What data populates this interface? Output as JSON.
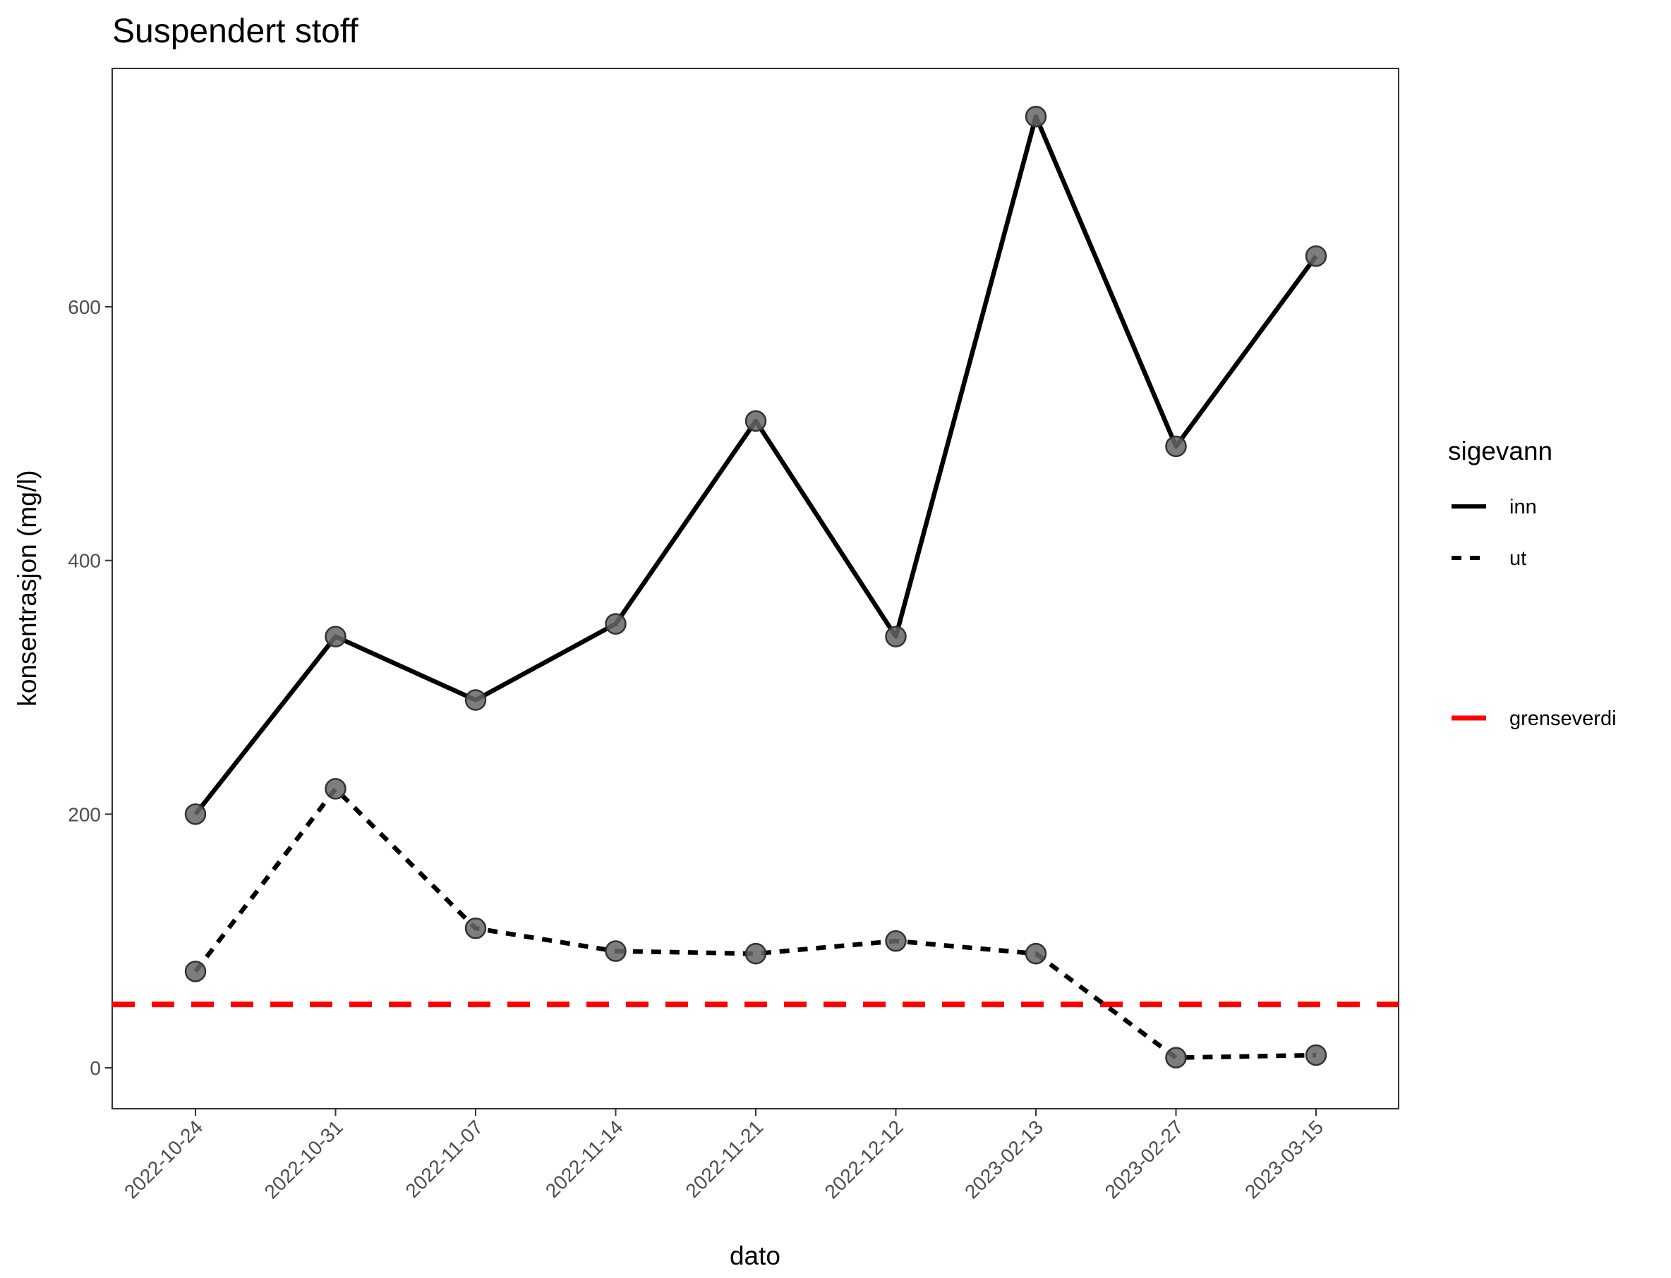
{
  "chart_data": {
    "type": "line",
    "title": "Suspendert stoff",
    "xlabel": "dato",
    "ylabel": "konsentrasjon (mg/l)",
    "categories": [
      "2022-10-24",
      "2022-10-31",
      "2022-11-07",
      "2022-11-14",
      "2022-11-21",
      "2022-12-12",
      "2023-02-13",
      "2023-02-27",
      "2023-03-15"
    ],
    "series": [
      {
        "name": "inn",
        "linetype": "solid",
        "color": "#000000",
        "values": [
          200,
          340,
          290,
          350,
          510,
          340,
          750,
          490,
          640
        ]
      },
      {
        "name": "ut",
        "linetype": "dashed",
        "color": "#000000",
        "values": [
          76,
          220,
          110,
          92,
          90,
          100,
          90,
          8,
          10
        ]
      }
    ],
    "reference_line": {
      "name": "grenseverdi",
      "value": 50,
      "color": "#ff0000",
      "linetype": "dashed"
    },
    "point_color": "#666666",
    "ylim": [
      -28,
      786
    ],
    "yticks": [
      0,
      200,
      400,
      600
    ],
    "grid": false,
    "legend": {
      "title": "sigevann",
      "position": "right"
    }
  }
}
